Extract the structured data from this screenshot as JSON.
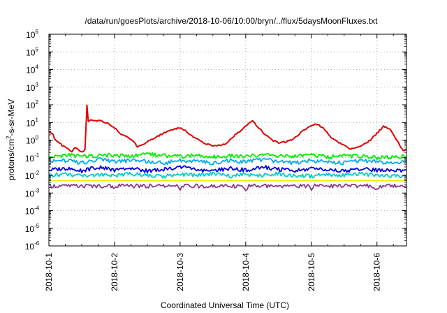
{
  "chart_data": {
    "type": "line",
    "title": "/data/run/goesPlots/archive/2018-10-06/10:00/bryn/../flux/5daysMoonFluxes.txt",
    "xlabel": "Coordinated Universal Time (UTC)",
    "ylabel_parts": {
      "base": "protons/cm",
      "sup": "2",
      "rest": "-s-sr-MeV"
    },
    "yscale": "log",
    "ylim": [
      1e-06,
      1000000.0
    ],
    "xlim": [
      0,
      5.45
    ],
    "grid": true,
    "y_ticks": [
      {
        "value": -6,
        "base": "10",
        "exp": "-6"
      },
      {
        "value": -5,
        "base": "10",
        "exp": "-5"
      },
      {
        "value": -4,
        "base": "10",
        "exp": "-4"
      },
      {
        "value": -3,
        "base": "10",
        "exp": "-3"
      },
      {
        "value": -2,
        "base": "10",
        "exp": "-2"
      },
      {
        "value": -1,
        "base": "10",
        "exp": "-1"
      },
      {
        "value": 0,
        "base": "10",
        "exp": "0"
      },
      {
        "value": 1,
        "base": "10",
        "exp": "1"
      },
      {
        "value": 2,
        "base": "10",
        "exp": "2"
      },
      {
        "value": 3,
        "base": "10",
        "exp": "3"
      },
      {
        "value": 4,
        "base": "10",
        "exp": "4"
      },
      {
        "value": 5,
        "base": "10",
        "exp": "5"
      },
      {
        "value": 6,
        "base": "10",
        "exp": "6"
      }
    ],
    "x_ticks": [
      {
        "value": 0,
        "label": "2018-10-1"
      },
      {
        "value": 1,
        "label": "2018-10-2"
      },
      {
        "value": 2,
        "label": "2018-10-3"
      },
      {
        "value": 3,
        "label": "2018-10-4"
      },
      {
        "value": 4,
        "label": "2018-10-5"
      },
      {
        "value": 5,
        "label": "2018-10-6"
      }
    ],
    "series": [
      {
        "color": "#e00000",
        "x": [
          0,
          0.05,
          0.1,
          0.15,
          0.2,
          0.25,
          0.3,
          0.35,
          0.4,
          0.45,
          0.5,
          0.55,
          0.58,
          0.6,
          0.65,
          0.7,
          0.8,
          0.9,
          0.95,
          1.0,
          1.1,
          1.2,
          1.3,
          1.35,
          1.4,
          1.5,
          1.6,
          1.7,
          1.8,
          1.9,
          2.0,
          2.1,
          2.2,
          2.3,
          2.4,
          2.5,
          2.6,
          2.7,
          2.8,
          2.9,
          3.0,
          3.1,
          3.2,
          3.3,
          3.4,
          3.5,
          3.6,
          3.7,
          3.8,
          3.9,
          4.0,
          4.1,
          4.2,
          4.3,
          4.4,
          4.5,
          4.6,
          4.7,
          4.8,
          4.9,
          5.0,
          5.1,
          5.2,
          5.3,
          5.35,
          5.4,
          5.45
        ],
        "y": [
          3,
          2.5,
          1,
          0.8,
          0.5,
          0.4,
          0.3,
          0.2,
          0.4,
          0.3,
          0.2,
          0.3,
          100,
          12,
          14,
          13,
          12,
          9,
          6,
          5,
          2,
          1.5,
          0.8,
          0.4,
          0.5,
          0.8,
          1.2,
          2,
          3,
          4,
          5,
          3,
          1.5,
          1,
          0.6,
          0.5,
          0.5,
          0.6,
          1.5,
          3,
          6,
          12,
          5,
          2,
          1,
          0.7,
          0.8,
          1,
          2,
          4,
          7,
          8,
          4,
          1.5,
          0.8,
          0.5,
          0.3,
          0.4,
          0.6,
          1,
          2.5,
          6,
          4,
          1,
          0.5,
          0.25,
          0.3
        ]
      },
      {
        "color": "#00ee00",
        "x": [
          0,
          0.25,
          0.5,
          0.75,
          1.0,
          1.25,
          1.5,
          1.75,
          2.0,
          2.25,
          2.5,
          2.75,
          3.0,
          3.25,
          3.5,
          3.75,
          4.0,
          4.25,
          4.5,
          4.75,
          5.0,
          5.25,
          5.45
        ],
        "y": [
          0.1,
          0.15,
          0.12,
          0.13,
          0.14,
          0.12,
          0.16,
          0.13,
          0.12,
          0.14,
          0.11,
          0.13,
          0.12,
          0.15,
          0.13,
          0.12,
          0.14,
          0.11,
          0.13,
          0.12,
          0.1,
          0.11,
          0.12
        ]
      },
      {
        "color": "#00aaee",
        "x": [
          0,
          0.25,
          0.5,
          0.75,
          1.0,
          1.25,
          1.5,
          1.75,
          2.0,
          2.25,
          2.5,
          2.75,
          3.0,
          3.25,
          3.5,
          3.75,
          4.0,
          4.25,
          4.5,
          4.75,
          5.0,
          5.25,
          5.45
        ],
        "y": [
          0.06,
          0.07,
          0.05,
          0.08,
          0.06,
          0.07,
          0.06,
          0.05,
          0.07,
          0.06,
          0.05,
          0.07,
          0.06,
          0.08,
          0.06,
          0.05,
          0.07,
          0.06,
          0.05,
          0.07,
          0.06,
          0.05,
          0.06
        ]
      },
      {
        "color": "#0000dd",
        "x": [
          0,
          0.25,
          0.5,
          0.75,
          1.0,
          1.25,
          1.5,
          1.75,
          2.0,
          2.25,
          2.5,
          2.75,
          3.0,
          3.25,
          3.5,
          3.75,
          4.0,
          4.25,
          4.5,
          4.75,
          5.0,
          5.25,
          5.45
        ],
        "y": [
          0.02,
          0.025,
          0.018,
          0.03,
          0.02,
          0.025,
          0.018,
          0.022,
          0.03,
          0.02,
          0.018,
          0.025,
          0.02,
          0.03,
          0.022,
          0.018,
          0.025,
          0.02,
          0.018,
          0.022,
          0.02,
          0.018,
          0.02
        ]
      },
      {
        "color": "#00cccc",
        "x": [
          0,
          0.25,
          0.5,
          0.75,
          1.0,
          1.25,
          1.5,
          1.75,
          2.0,
          2.25,
          2.5,
          2.75,
          3.0,
          3.25,
          3.5,
          3.75,
          4.0,
          4.25,
          4.5,
          4.75,
          5.0,
          5.25,
          5.45
        ],
        "y": [
          0.01,
          0.012,
          0.009,
          0.011,
          0.01,
          0.012,
          0.01,
          0.009,
          0.011,
          0.01,
          0.012,
          0.009,
          0.011,
          0.01,
          0.012,
          0.01,
          0.009,
          0.011,
          0.01,
          0.012,
          0.01,
          0.009,
          0.01
        ]
      },
      {
        "color": "#eeee00",
        "x": [
          0,
          0.5,
          1.0,
          1.5,
          2.0,
          2.5,
          3.0,
          3.5,
          4.0,
          4.5,
          5.0,
          5.45
        ],
        "y": [
          0.005,
          0.005,
          0.005,
          0.005,
          0.005,
          0.005,
          0.005,
          0.005,
          0.005,
          0.005,
          0.005,
          0.005
        ]
      },
      {
        "color": "#8b3a8b",
        "x": [
          0,
          0.5,
          0.95,
          1.0,
          1.05,
          1.5,
          1.95,
          2.0,
          2.05,
          2.5,
          2.95,
          3.0,
          3.05,
          3.5,
          3.95,
          4.0,
          4.05,
          4.5,
          4.95,
          5.0,
          5.05,
          5.45
        ],
        "y": [
          0.0025,
          0.0025,
          0.0025,
          0.0016,
          0.0025,
          0.0025,
          0.0025,
          0.0016,
          0.0025,
          0.0025,
          0.0025,
          0.0016,
          0.0025,
          0.0025,
          0.0025,
          0.0016,
          0.0025,
          0.0025,
          0.0025,
          0.0016,
          0.0025,
          0.0025
        ]
      }
    ]
  }
}
